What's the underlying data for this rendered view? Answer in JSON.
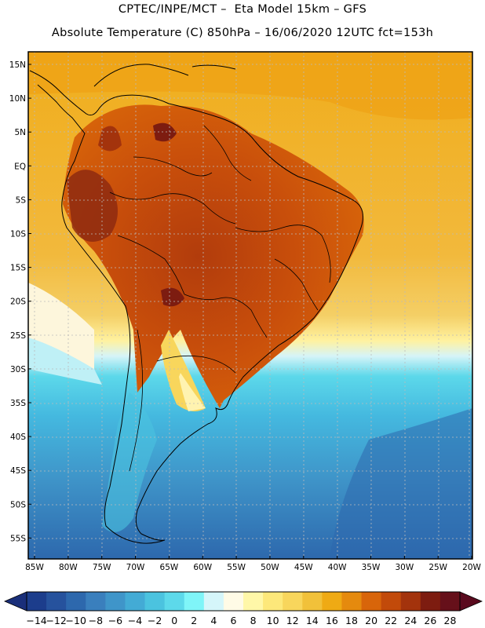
{
  "header": {
    "line1": "CPTEC/INPE/MCT –  Eta Model 15km – GFS",
    "line2": "Absolute Temperature (C) 850hPa – 16/06/2020 12UTC fct=153h"
  },
  "map": {
    "lat_labels": [
      "15N",
      "10N",
      "5N",
      "EQ",
      "5S",
      "10S",
      "15S",
      "20S",
      "25S",
      "30S",
      "35S",
      "40S",
      "45S",
      "50S",
      "55S"
    ],
    "lon_labels": [
      "85W",
      "80W",
      "75W",
      "70W",
      "65W",
      "60W",
      "55W",
      "50W",
      "45W",
      "40W",
      "35W",
      "30W",
      "25W",
      "20W"
    ]
  },
  "colorbar": {
    "labels": [
      "-14",
      "-12",
      "-10",
      "-8",
      "-6",
      "-4",
      "-2",
      "0",
      "2",
      "4",
      "6",
      "8",
      "10",
      "12",
      "14",
      "16",
      "18",
      "20",
      "22",
      "24",
      "26",
      "28"
    ],
    "colors": [
      "#1c3d8c",
      "#26529d",
      "#2d68ad",
      "#3a7fbd",
      "#3f95c9",
      "#43abd5",
      "#4bc3df",
      "#5dd9ea",
      "#7ff5f8",
      "#d5f6fa",
      "#fffbe6",
      "#fff7a8",
      "#fde87a",
      "#f8d65c",
      "#f1c13a",
      "#efaa14",
      "#e58a0e",
      "#d8650a",
      "#c24a0a",
      "#a3330c",
      "#7d1c10",
      "#66101a"
    ]
  }
}
